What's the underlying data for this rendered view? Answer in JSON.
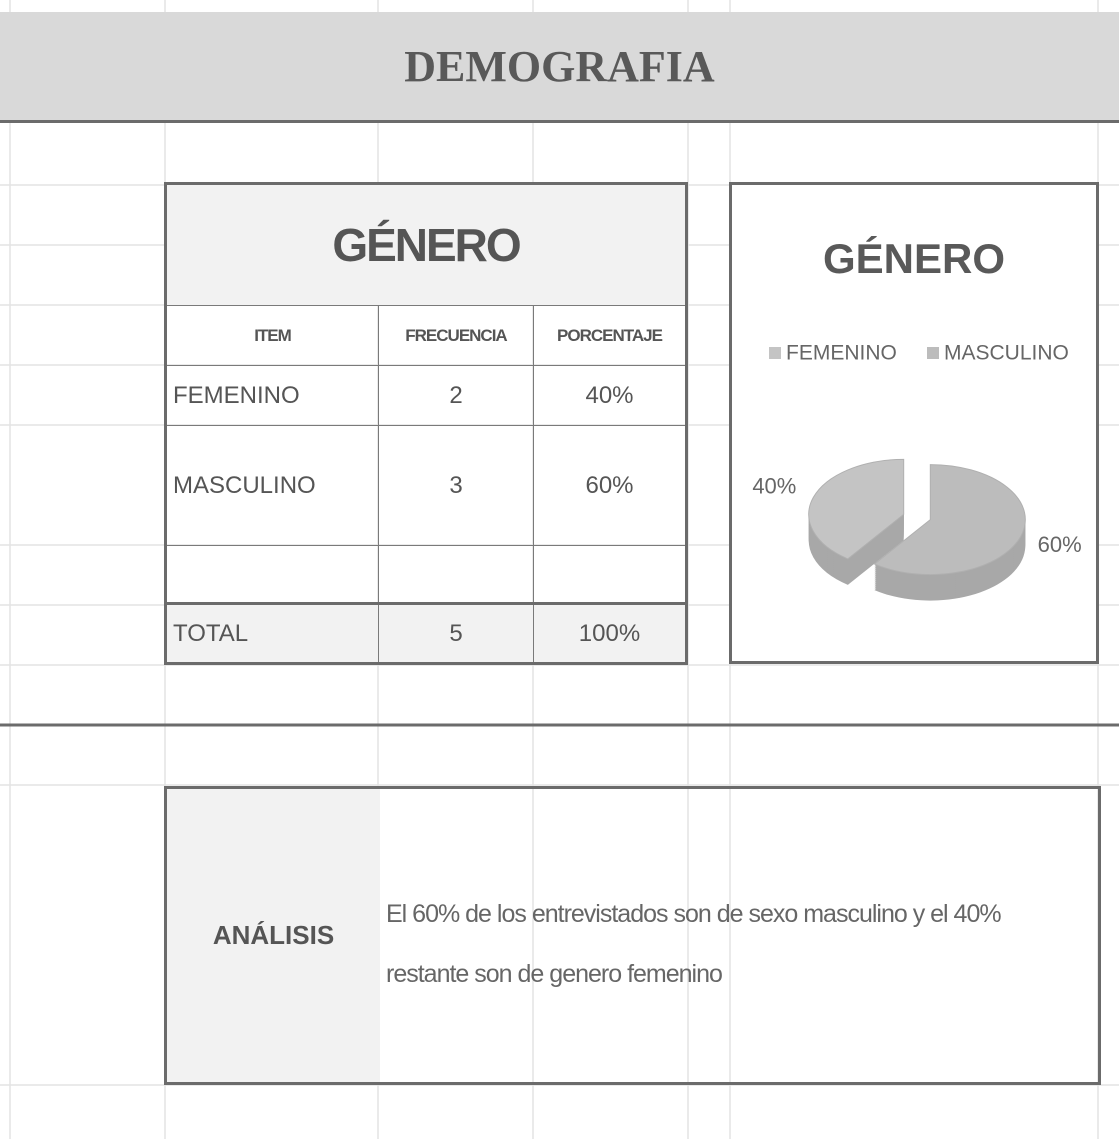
{
  "header": {
    "title": "DEMOGRAFIA"
  },
  "table": {
    "title": "GÉNERO",
    "columns": [
      "ITEM",
      "FRECUENCIA",
      "PORCENTAJE"
    ],
    "rows": [
      [
        "FEMENINO",
        "2",
        "40%"
      ],
      [
        "MASCULINO",
        "3",
        "60%"
      ]
    ],
    "total": [
      "TOTAL",
      "5",
      "100%"
    ]
  },
  "chart_data": {
    "type": "pie",
    "title": "GÉNERO",
    "categories": [
      "FEMENINO",
      "MASCULINO"
    ],
    "values": [
      40,
      60
    ],
    "value_labels": [
      "40%",
      "60%"
    ],
    "colors": [
      "#c4c4c4",
      "#bcbcbc"
    ],
    "legend": "top"
  },
  "analysis": {
    "label": "ANÁLISIS",
    "text": "El 60% de los entrevistados son de sexo masculino y el 40% restante son de genero femenino"
  }
}
